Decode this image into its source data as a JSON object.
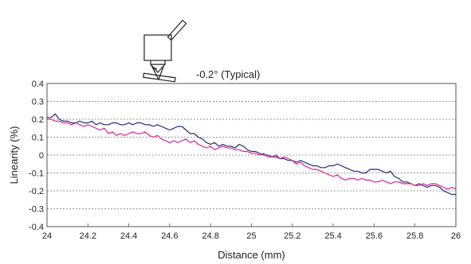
{
  "chart_data": {
    "type": "line",
    "annotation": "-0.2° (Typical)",
    "xlabel": "Distance (mm)",
    "ylabel": "Linearity (%)",
    "xlim": [
      24,
      26
    ],
    "ylim": [
      -0.4,
      0.4
    ],
    "x_ticks": [
      24,
      24.2,
      24.4,
      24.6,
      24.8,
      25,
      25.2,
      25.4,
      25.6,
      25.8,
      26
    ],
    "x_tick_labels": [
      "24",
      "24.2",
      "24.4",
      "24.6",
      "24.8",
      "25",
      "25.2",
      "25.4",
      "25.6",
      "25.8",
      "26"
    ],
    "y_ticks": [
      -0.4,
      -0.3,
      -0.2,
      -0.1,
      0,
      0.1,
      0.2,
      0.3,
      0.4
    ],
    "y_tick_labels": [
      "-0.4",
      "-0.3",
      "-0.2",
      "-0.1",
      "0",
      "0.1",
      "0.2",
      "0.3",
      "0.4"
    ],
    "grid": "horizontal-dotted",
    "series": [
      {
        "color": "#1f2a7a",
        "points": [
          [
            24.0,
            0.21
          ],
          [
            24.02,
            0.21
          ],
          [
            24.04,
            0.23
          ],
          [
            24.06,
            0.2
          ],
          [
            24.08,
            0.19
          ],
          [
            24.1,
            0.19
          ],
          [
            24.12,
            0.18
          ],
          [
            24.14,
            0.18
          ],
          [
            24.16,
            0.19
          ],
          [
            24.18,
            0.18
          ],
          [
            24.2,
            0.18
          ],
          [
            24.22,
            0.19
          ],
          [
            24.24,
            0.17
          ],
          [
            24.26,
            0.18
          ],
          [
            24.28,
            0.17
          ],
          [
            24.3,
            0.17
          ],
          [
            24.32,
            0.18
          ],
          [
            24.34,
            0.18
          ],
          [
            24.36,
            0.17
          ],
          [
            24.38,
            0.17
          ],
          [
            24.4,
            0.18
          ],
          [
            24.42,
            0.17
          ],
          [
            24.44,
            0.18
          ],
          [
            24.46,
            0.18
          ],
          [
            24.48,
            0.17
          ],
          [
            24.5,
            0.17
          ],
          [
            24.52,
            0.16
          ],
          [
            24.54,
            0.17
          ],
          [
            24.56,
            0.16
          ],
          [
            24.58,
            0.15
          ],
          [
            24.6,
            0.14
          ],
          [
            24.62,
            0.15
          ],
          [
            24.64,
            0.16
          ],
          [
            24.66,
            0.16
          ],
          [
            24.68,
            0.14
          ],
          [
            24.7,
            0.12
          ],
          [
            24.72,
            0.12
          ],
          [
            24.74,
            0.1
          ],
          [
            24.76,
            0.09
          ],
          [
            24.78,
            0.07
          ],
          [
            24.8,
            0.06
          ],
          [
            24.82,
            0.07
          ],
          [
            24.84,
            0.05
          ],
          [
            24.86,
            0.06
          ],
          [
            24.88,
            0.05
          ],
          [
            24.9,
            0.05
          ],
          [
            24.92,
            0.04
          ],
          [
            24.94,
            0.06
          ],
          [
            24.96,
            0.05
          ],
          [
            24.98,
            0.03
          ],
          [
            25.0,
            0.02
          ],
          [
            25.02,
            0.02
          ],
          [
            25.04,
            0.01
          ],
          [
            25.06,
            0.0
          ],
          [
            25.08,
            0.0
          ],
          [
            25.1,
            -0.01
          ],
          [
            25.12,
            -0.01
          ],
          [
            25.14,
            -0.02
          ],
          [
            25.16,
            -0.02
          ],
          [
            25.18,
            -0.03
          ],
          [
            25.2,
            -0.03
          ],
          [
            25.22,
            -0.04
          ],
          [
            25.24,
            -0.03
          ],
          [
            25.26,
            -0.04
          ],
          [
            25.28,
            -0.05
          ],
          [
            25.3,
            -0.06
          ],
          [
            25.32,
            -0.06
          ],
          [
            25.34,
            -0.07
          ],
          [
            25.36,
            -0.07
          ],
          [
            25.38,
            -0.06
          ],
          [
            25.4,
            -0.06
          ],
          [
            25.42,
            -0.05
          ],
          [
            25.44,
            -0.06
          ],
          [
            25.46,
            -0.07
          ],
          [
            25.48,
            -0.08
          ],
          [
            25.5,
            -0.09
          ],
          [
            25.52,
            -0.09
          ],
          [
            25.54,
            -0.1
          ],
          [
            25.56,
            -0.1
          ],
          [
            25.58,
            -0.08
          ],
          [
            25.6,
            -0.08
          ],
          [
            25.62,
            -0.08
          ],
          [
            25.64,
            -0.09
          ],
          [
            25.66,
            -0.1
          ],
          [
            25.68,
            -0.09
          ],
          [
            25.7,
            -0.12
          ],
          [
            25.72,
            -0.13
          ],
          [
            25.74,
            -0.15
          ],
          [
            25.76,
            -0.15
          ],
          [
            25.78,
            -0.16
          ],
          [
            25.8,
            -0.17
          ],
          [
            25.82,
            -0.16
          ],
          [
            25.84,
            -0.17
          ],
          [
            25.86,
            -0.18
          ],
          [
            25.88,
            -0.17
          ],
          [
            25.9,
            -0.17
          ],
          [
            25.92,
            -0.18
          ],
          [
            25.94,
            -0.2
          ],
          [
            25.96,
            -0.21
          ],
          [
            25.98,
            -0.22
          ],
          [
            26.0,
            -0.22
          ]
        ]
      },
      {
        "color": "#e0208a",
        "points": [
          [
            24.0,
            0.2
          ],
          [
            24.02,
            0.2
          ],
          [
            24.04,
            0.19
          ],
          [
            24.06,
            0.19
          ],
          [
            24.08,
            0.18
          ],
          [
            24.1,
            0.18
          ],
          [
            24.12,
            0.17
          ],
          [
            24.14,
            0.18
          ],
          [
            24.16,
            0.17
          ],
          [
            24.18,
            0.16
          ],
          [
            24.2,
            0.17
          ],
          [
            24.22,
            0.16
          ],
          [
            24.24,
            0.15
          ],
          [
            24.26,
            0.14
          ],
          [
            24.28,
            0.15
          ],
          [
            24.3,
            0.12
          ],
          [
            24.32,
            0.13
          ],
          [
            24.34,
            0.11
          ],
          [
            24.36,
            0.12
          ],
          [
            24.38,
            0.11
          ],
          [
            24.4,
            0.12
          ],
          [
            24.42,
            0.13
          ],
          [
            24.44,
            0.12
          ],
          [
            24.46,
            0.12
          ],
          [
            24.48,
            0.13
          ],
          [
            24.5,
            0.11
          ],
          [
            24.52,
            0.1
          ],
          [
            24.54,
            0.11
          ],
          [
            24.56,
            0.09
          ],
          [
            24.58,
            0.08
          ],
          [
            24.6,
            0.07
          ],
          [
            24.62,
            0.08
          ],
          [
            24.64,
            0.07
          ],
          [
            24.66,
            0.08
          ],
          [
            24.68,
            0.09
          ],
          [
            24.7,
            0.07
          ],
          [
            24.72,
            0.08
          ],
          [
            24.74,
            0.06
          ],
          [
            24.76,
            0.05
          ],
          [
            24.78,
            0.04
          ],
          [
            24.8,
            0.05
          ],
          [
            24.82,
            0.03
          ],
          [
            24.84,
            0.04
          ],
          [
            24.86,
            0.05
          ],
          [
            24.88,
            0.04
          ],
          [
            24.9,
            0.04
          ],
          [
            24.92,
            0.03
          ],
          [
            24.94,
            0.03
          ],
          [
            24.96,
            0.02
          ],
          [
            24.98,
            0.02
          ],
          [
            25.0,
            0.01
          ],
          [
            25.02,
            0.01
          ],
          [
            25.04,
            0.0
          ],
          [
            25.06,
            0.01
          ],
          [
            25.08,
            -0.01
          ],
          [
            25.1,
            -0.01
          ],
          [
            25.12,
            0.0
          ],
          [
            25.14,
            -0.02
          ],
          [
            25.16,
            -0.01
          ],
          [
            25.18,
            -0.02
          ],
          [
            25.2,
            -0.03
          ],
          [
            25.22,
            -0.05
          ],
          [
            25.24,
            -0.04
          ],
          [
            25.26,
            -0.06
          ],
          [
            25.28,
            -0.07
          ],
          [
            25.3,
            -0.08
          ],
          [
            25.32,
            -0.08
          ],
          [
            25.34,
            -0.09
          ],
          [
            25.36,
            -0.1
          ],
          [
            25.38,
            -0.11
          ],
          [
            25.4,
            -0.12
          ],
          [
            25.42,
            -0.11
          ],
          [
            25.44,
            -0.13
          ],
          [
            25.46,
            -0.14
          ],
          [
            25.48,
            -0.13
          ],
          [
            25.5,
            -0.13
          ],
          [
            25.52,
            -0.14
          ],
          [
            25.54,
            -0.13
          ],
          [
            25.56,
            -0.14
          ],
          [
            25.58,
            -0.14
          ],
          [
            25.6,
            -0.15
          ],
          [
            25.62,
            -0.15
          ],
          [
            25.64,
            -0.14
          ],
          [
            25.66,
            -0.15
          ],
          [
            25.68,
            -0.16
          ],
          [
            25.7,
            -0.15
          ],
          [
            25.72,
            -0.15
          ],
          [
            25.74,
            -0.16
          ],
          [
            25.76,
            -0.16
          ],
          [
            25.78,
            -0.16
          ],
          [
            25.8,
            -0.17
          ],
          [
            25.82,
            -0.17
          ],
          [
            25.84,
            -0.16
          ],
          [
            25.86,
            -0.17
          ],
          [
            25.88,
            -0.16
          ],
          [
            25.9,
            -0.16
          ],
          [
            25.92,
            -0.17
          ],
          [
            25.94,
            -0.18
          ],
          [
            25.96,
            -0.19
          ],
          [
            25.98,
            -0.18
          ],
          [
            26.0,
            -0.19
          ]
        ]
      }
    ]
  }
}
